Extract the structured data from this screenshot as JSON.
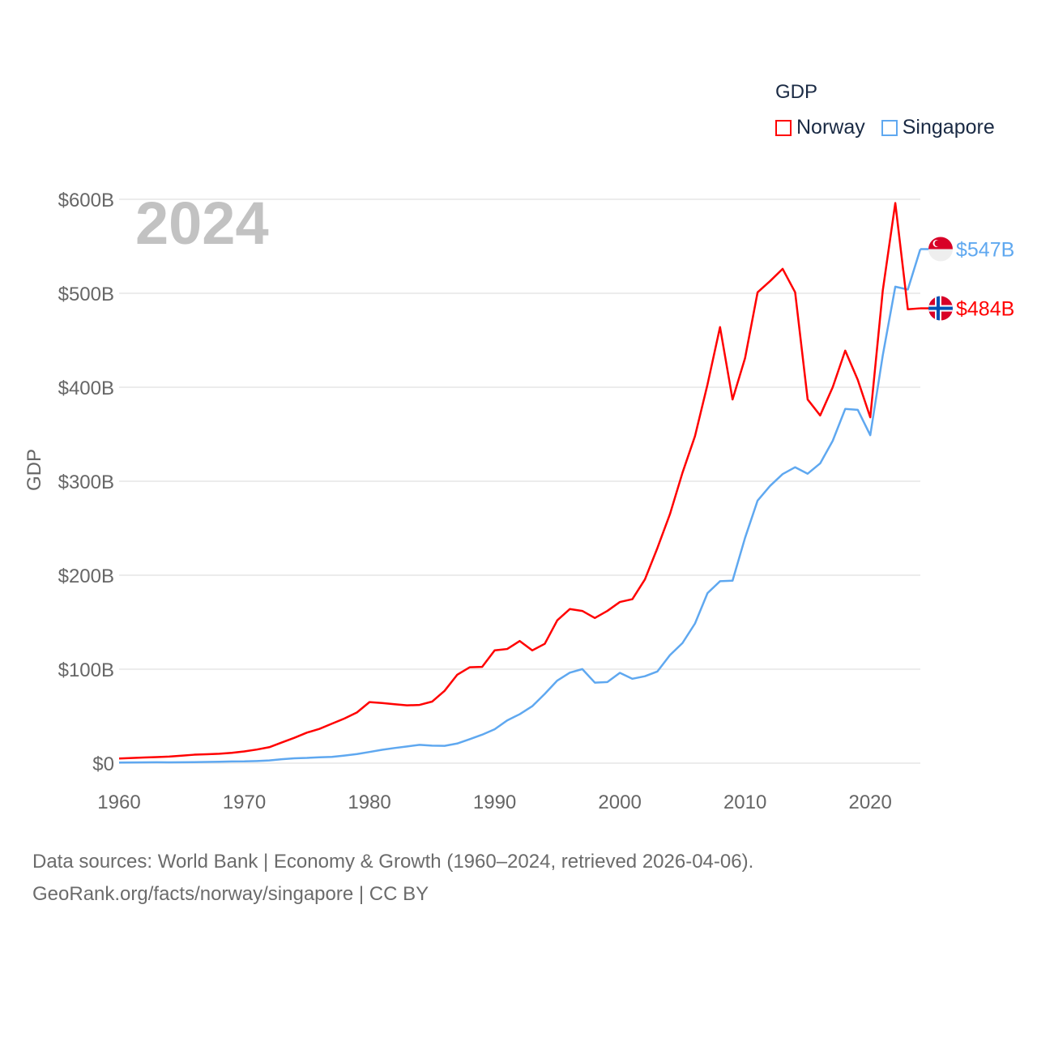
{
  "chart_data": {
    "type": "line",
    "title": "GDP",
    "ylabel": "GDP",
    "xlabel": "",
    "year_watermark": "2024",
    "xlim": [
      1960,
      2024
    ],
    "ylim": [
      0,
      600
    ],
    "x_ticks": [
      "1960",
      "1970",
      "1980",
      "1990",
      "2000",
      "2010",
      "2020"
    ],
    "y_ticks": [
      "$0",
      "$100B",
      "$200B",
      "$300B",
      "$400B",
      "$500B",
      "$600B"
    ],
    "grid": true,
    "legend_position": "top-right",
    "units": "billion USD",
    "x": [
      1960,
      1961,
      1962,
      1963,
      1964,
      1965,
      1966,
      1967,
      1968,
      1969,
      1970,
      1971,
      1972,
      1973,
      1974,
      1975,
      1976,
      1977,
      1978,
      1979,
      1980,
      1981,
      1982,
      1983,
      1984,
      1985,
      1986,
      1987,
      1988,
      1989,
      1990,
      1991,
      1992,
      1993,
      1994,
      1995,
      1996,
      1997,
      1998,
      1999,
      2000,
      2001,
      2002,
      2003,
      2004,
      2005,
      2006,
      2007,
      2008,
      2009,
      2010,
      2011,
      2012,
      2013,
      2014,
      2015,
      2016,
      2017,
      2018,
      2019,
      2020,
      2021,
      2022,
      2023,
      2024
    ],
    "series": [
      {
        "name": "Norway",
        "color": "#ff0000",
        "end_label": "$484B",
        "flag": "norway-flag",
        "values": [
          5,
          5.5,
          6,
          6.5,
          7,
          8,
          9,
          9.5,
          10,
          11,
          12.5,
          14.5,
          17,
          22,
          27,
          32.5,
          36.5,
          42,
          47.5,
          54,
          65,
          64,
          62.7,
          61.5,
          62,
          65.5,
          77,
          94,
          102,
          102.5,
          120,
          121.5,
          130,
          120,
          127,
          152,
          164,
          162,
          154.5,
          162,
          171.5,
          174.5,
          195.5,
          229,
          265,
          309,
          348,
          403,
          464,
          387,
          431,
          501,
          513,
          526,
          501,
          387,
          370,
          400,
          439,
          408,
          368,
          503,
          596,
          483,
          484
        ]
      },
      {
        "name": "Singapore",
        "color": "#5fa8f0",
        "end_label": "$547B",
        "flag": "singapore-flag",
        "values": [
          0.7,
          0.8,
          0.9,
          1,
          0.9,
          1,
          1.1,
          1.3,
          1.5,
          1.8,
          1.9,
          2.3,
          2.9,
          4.2,
          5.2,
          5.6,
          6.3,
          6.7,
          8.1,
          9.7,
          11.9,
          14.2,
          16.1,
          17.8,
          19.5,
          18.6,
          18.4,
          20.9,
          25.5,
          30.3,
          36.1,
          45.5,
          52.1,
          60.6,
          73.7,
          87.9,
          96.3,
          100.1,
          85.7,
          86.3,
          96.1,
          89.8,
          92.5,
          97.6,
          115,
          127.8,
          148.6,
          180.9,
          193.6,
          194.2,
          239.8,
          279.4,
          295.1,
          307.6,
          314.9,
          308,
          319,
          343,
          376.9,
          376,
          349,
          434,
          507,
          504,
          547
        ]
      }
    ]
  },
  "legend": {
    "title": "GDP",
    "items": [
      "Norway",
      "Singapore"
    ]
  },
  "source": {
    "line1": "Data sources: World Bank | Economy & Growth (1960–2024, retrieved 2026-04-06).",
    "line2": "GeoRank.org/facts/norway/singapore | CC BY"
  }
}
